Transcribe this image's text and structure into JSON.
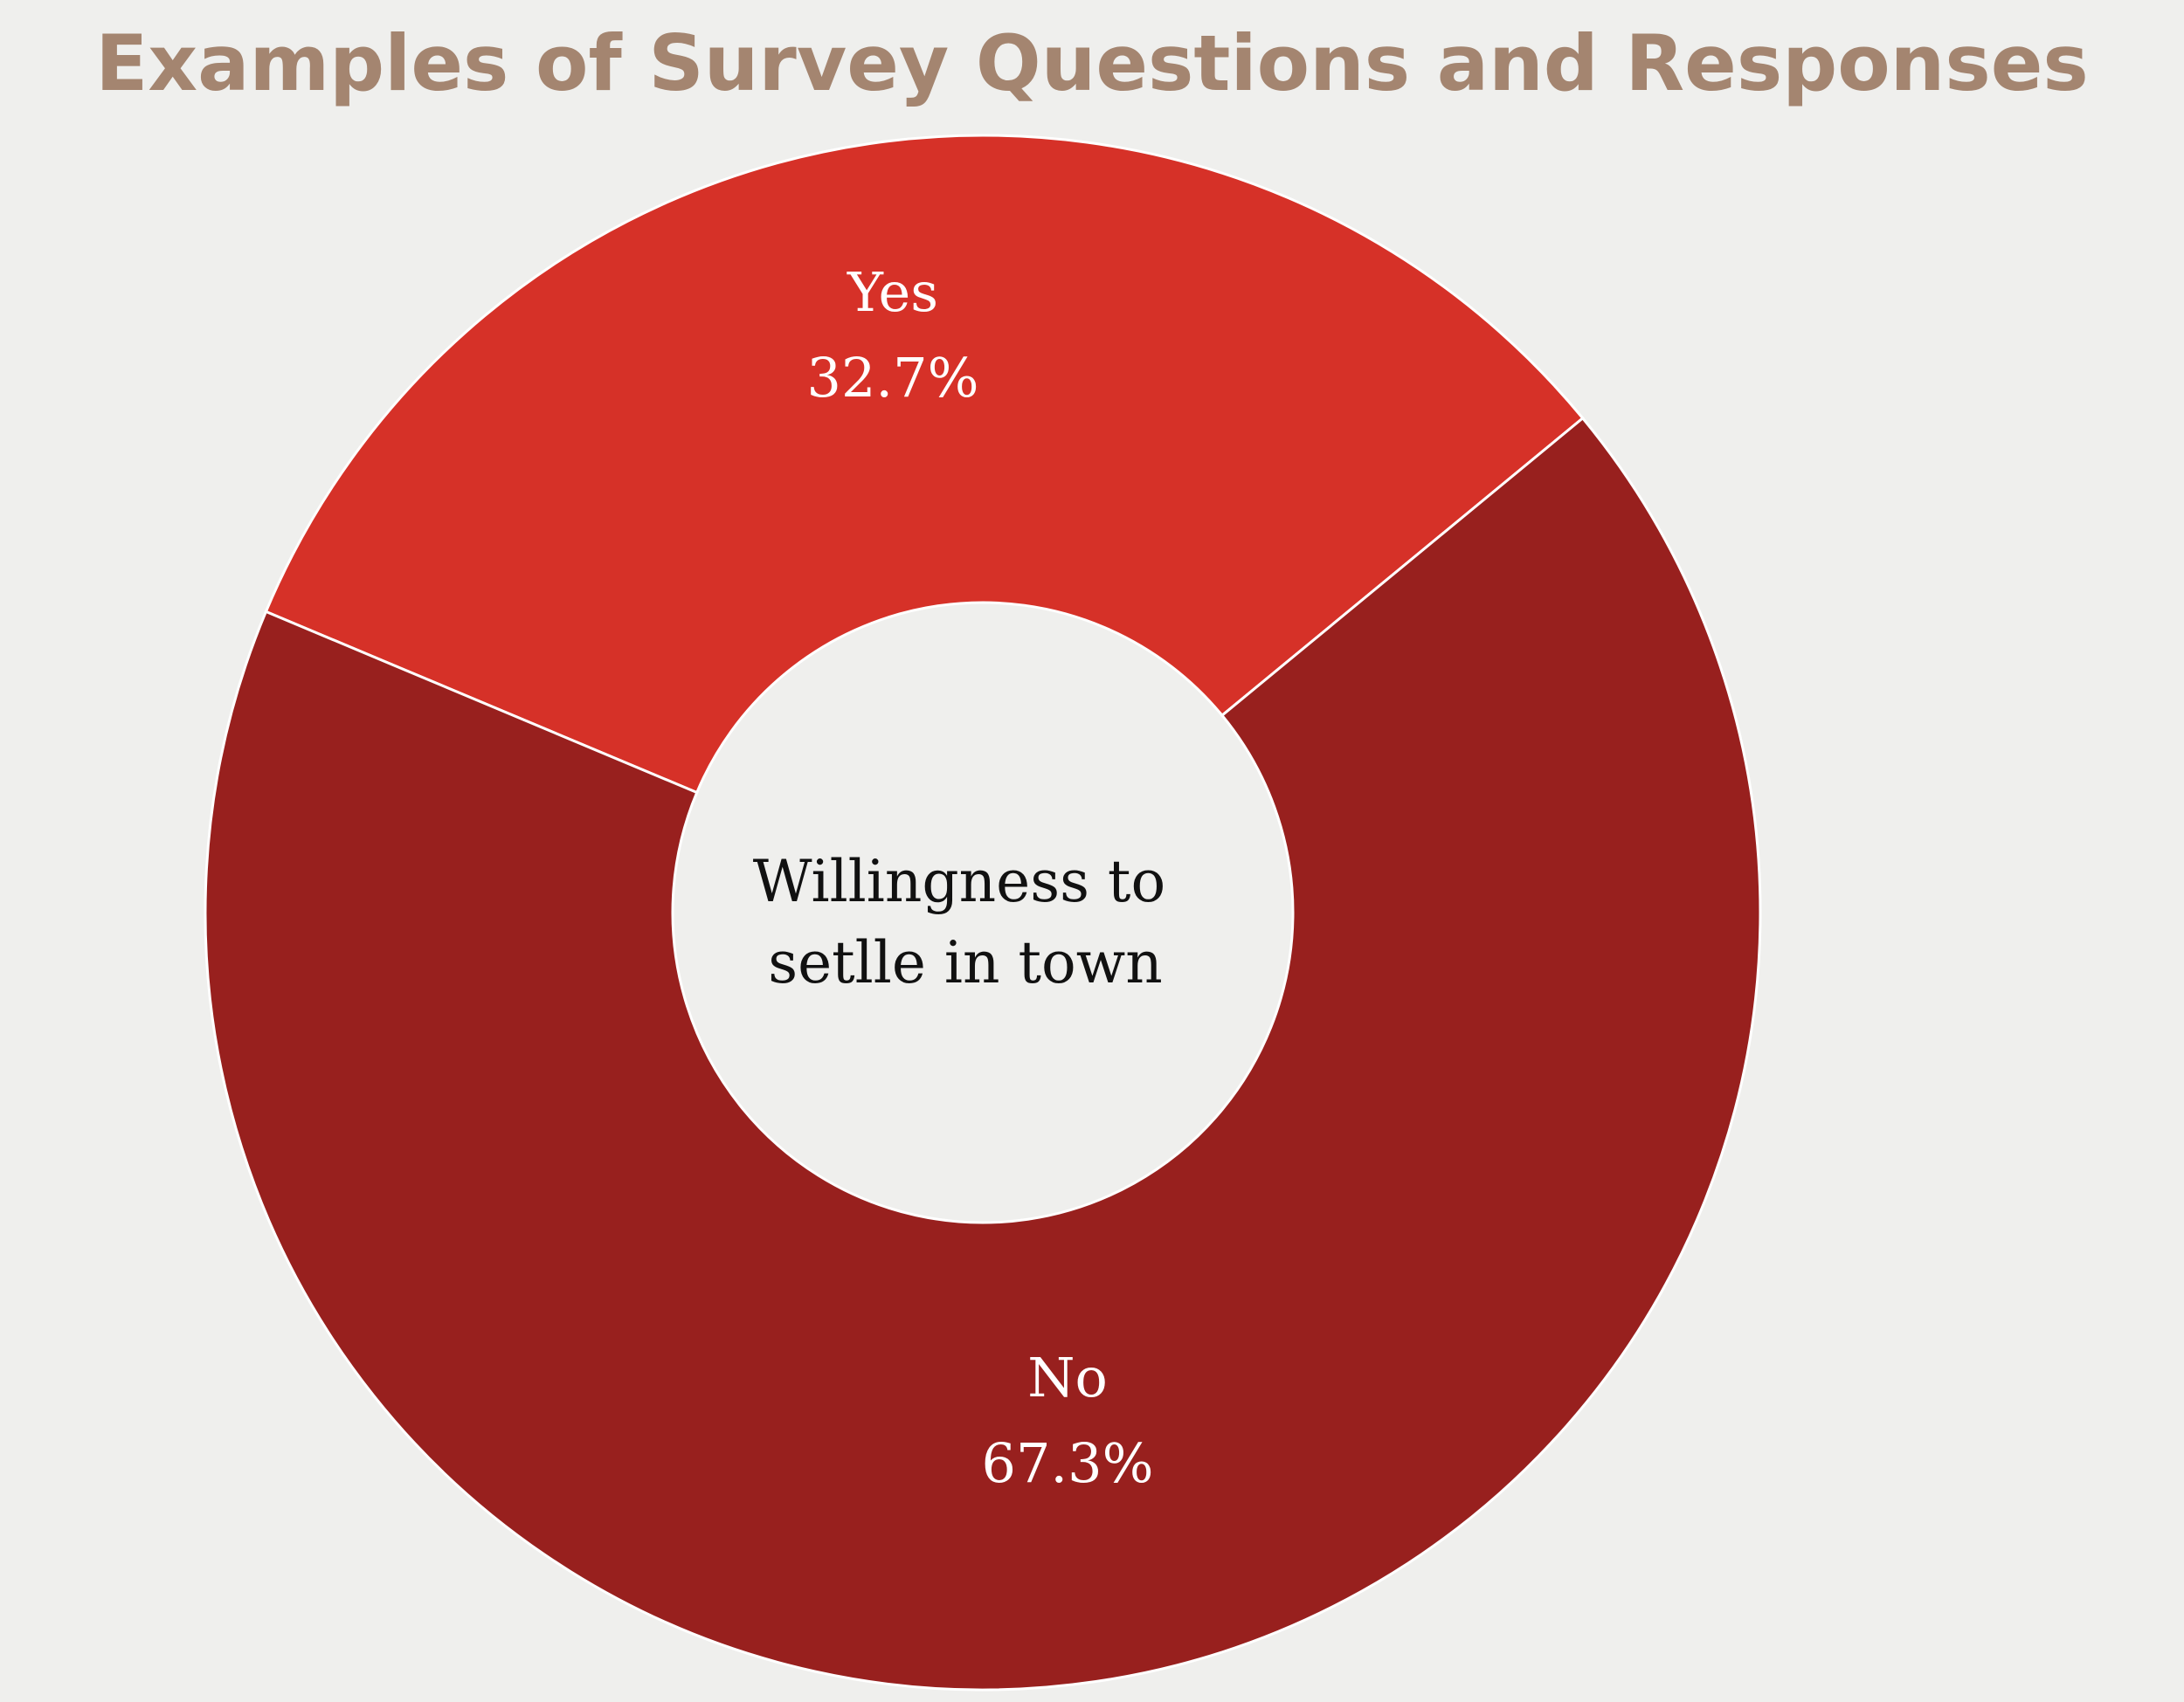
{
  "chart_data": {
    "type": "pie",
    "subtype": "donut",
    "title": "Examples of Survey Questions and Responses",
    "center_label": [
      "Willingness to",
      "setlle in town"
    ],
    "slices": [
      {
        "label": "Yes",
        "value": 32.7,
        "display": "32.7%",
        "color": "#d63128"
      },
      {
        "label": "No",
        "value": 67.3,
        "display": "67.3%",
        "color": "#98201e"
      }
    ]
  },
  "colors": {
    "background": "#efefed",
    "title": "#a48570",
    "separator": "#ffffff",
    "center_text": "#111111"
  }
}
